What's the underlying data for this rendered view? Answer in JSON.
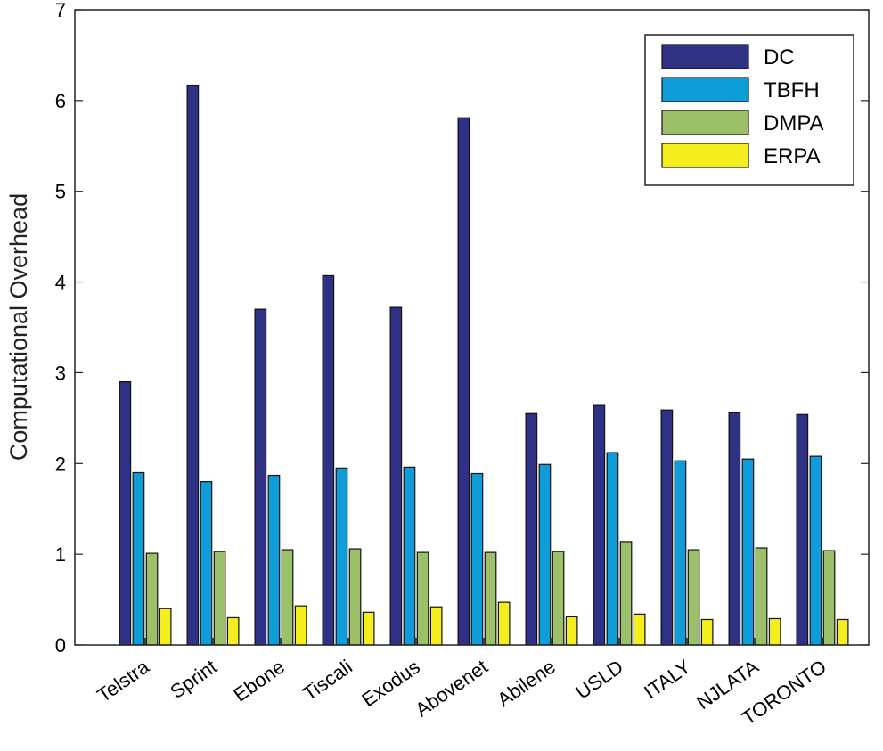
{
  "chart_data": {
    "type": "bar",
    "title": "",
    "xlabel": "",
    "ylabel": "Computational Overhead",
    "ylim": [
      0,
      7
    ],
    "yticks": [
      0,
      1,
      2,
      3,
      4,
      5,
      6,
      7
    ],
    "grid": false,
    "legend_position": "top-right",
    "categories": [
      "Telstra",
      "Sprint",
      "Ebone",
      "Tiscali",
      "Exodus",
      "Abovenet",
      "Abilene",
      "USLD",
      "ITALY",
      "NJLATA",
      "TORONTO"
    ],
    "series": [
      {
        "name": "DC",
        "color": "#2e3184",
        "values": [
          2.9,
          6.17,
          3.7,
          4.07,
          3.72,
          5.81,
          2.55,
          2.64,
          2.59,
          2.56,
          2.54
        ]
      },
      {
        "name": "TBFH",
        "color": "#0f9dd9",
        "values": [
          1.9,
          1.8,
          1.87,
          1.95,
          1.96,
          1.89,
          1.99,
          2.12,
          2.03,
          2.05,
          2.08
        ]
      },
      {
        "name": "DMPA",
        "color": "#9cbf6a",
        "values": [
          1.01,
          1.03,
          1.05,
          1.06,
          1.02,
          1.02,
          1.03,
          1.14,
          1.05,
          1.07,
          1.04
        ]
      },
      {
        "name": "ERPA",
        "color": "#f4ee1f",
        "values": [
          0.4,
          0.3,
          0.43,
          0.36,
          0.42,
          0.47,
          0.31,
          0.34,
          0.28,
          0.29,
          0.28
        ]
      }
    ]
  }
}
